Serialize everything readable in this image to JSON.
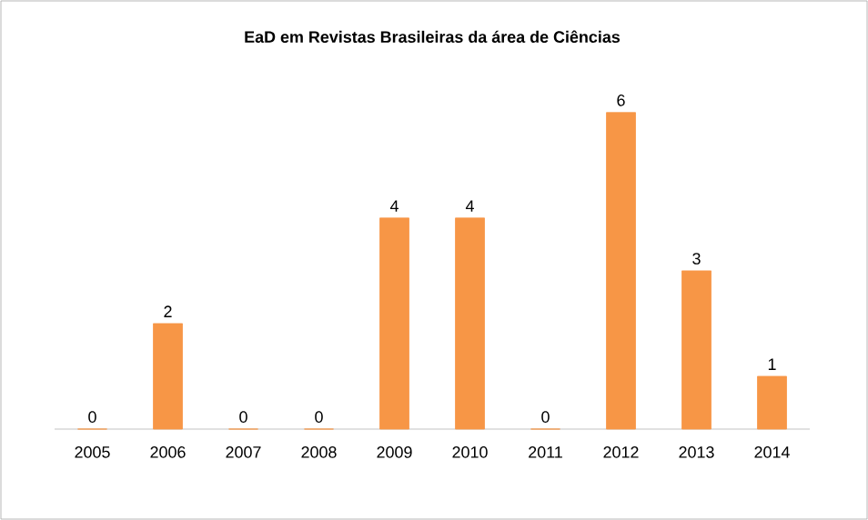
{
  "chart_data": {
    "type": "bar",
    "title": "EaD em Revistas Brasileiras da área de Ciências",
    "categories": [
      "2005",
      "2006",
      "2007",
      "2008",
      "2009",
      "2010",
      "2011",
      "2012",
      "2013",
      "2014"
    ],
    "values": [
      0,
      2,
      0,
      0,
      4,
      4,
      0,
      6,
      3,
      1
    ],
    "color": "#f79646",
    "data_labels": true,
    "tick_labels": "x"
  }
}
